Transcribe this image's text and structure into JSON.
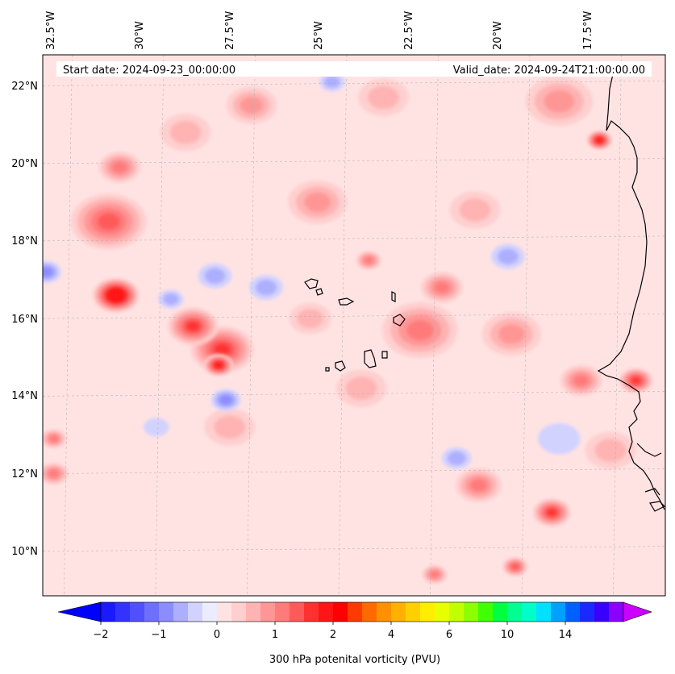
{
  "header": {
    "start_date": "Start date: 2024-09-23_00:00:00",
    "valid_date": "Valid_date: 2024-09-24T21:00:00.00"
  },
  "map": {
    "lon_labels": [
      "32.5°W",
      "30°W",
      "27.5°W",
      "25°W",
      "22.5°W",
      "20°W",
      "17.5°W"
    ],
    "lat_labels": [
      "22°N",
      "20°N",
      "18°N",
      "16°N",
      "14°N",
      "12°N",
      "10°N"
    ],
    "background_color": "#ffe3e3",
    "coastline_color": "#000000"
  },
  "colorbar": {
    "title": "300 hPa potenital vorticity (PVU)",
    "tick_labels": [
      "−2",
      "−1",
      "0",
      "1",
      "2",
      "4",
      "6",
      "10",
      "14"
    ],
    "colors": [
      "#1a1aff",
      "#3333ff",
      "#5050ff",
      "#6e6eff",
      "#8c8cff",
      "#aeaeff",
      "#d2d2ff",
      "#ececff",
      "#ffe3e3",
      "#ffcfcf",
      "#ffb3b3",
      "#ff9696",
      "#ff7a7a",
      "#ff5a5a",
      "#ff3030",
      "#ff1515",
      "#ff0000",
      "#ff3a00",
      "#ff6a00",
      "#ff9000",
      "#ffb000",
      "#ffcf00",
      "#ffee00",
      "#e8ff00",
      "#c2ff00",
      "#8cff00",
      "#40ff00",
      "#00ff40",
      "#00ff90",
      "#00ffc8",
      "#00e0ff",
      "#00a0ff",
      "#0060ff",
      "#1a2aff",
      "#3a00ff",
      "#8c00ff"
    ],
    "extend_min_color": "#0000ff",
    "extend_max_color": "#cc00ff"
  },
  "features": [
    {
      "lon": -31.3,
      "lat": 16.6,
      "r": 0.55,
      "level": 2.2
    },
    {
      "lon": -31.5,
      "lat": 18.5,
      "r": 0.9,
      "level": 1.3
    },
    {
      "lon": -31.2,
      "lat": 19.9,
      "r": 0.5,
      "level": 1.0
    },
    {
      "lon": -28.4,
      "lat": 15.2,
      "r": 0.75,
      "level": 1.6
    },
    {
      "lon": -29.2,
      "lat": 15.8,
      "r": 0.6,
      "level": 1.6
    },
    {
      "lon": -28.5,
      "lat": 14.8,
      "r": 0.35,
      "level": 1.8
    },
    {
      "lon": -18.1,
      "lat": 20.6,
      "r": 0.3,
      "level": 1.8
    },
    {
      "lon": -17.1,
      "lat": 14.4,
      "r": 0.4,
      "level": 1.6
    },
    {
      "lon": -19.4,
      "lat": 11.0,
      "r": 0.45,
      "level": 1.4
    },
    {
      "lon": -21.4,
      "lat": 11.7,
      "r": 0.55,
      "level": 0.9
    },
    {
      "lon": -23.0,
      "lat": 15.7,
      "r": 0.9,
      "level": 0.9
    },
    {
      "lon": -22.4,
      "lat": 16.8,
      "r": 0.5,
      "level": 1.0
    },
    {
      "lon": -24.4,
      "lat": 17.5,
      "r": 0.3,
      "level": 1.0
    },
    {
      "lon": -20.5,
      "lat": 15.6,
      "r": 0.7,
      "level": 0.8
    },
    {
      "lon": -18.6,
      "lat": 14.4,
      "r": 0.5,
      "level": 0.9
    },
    {
      "lon": -22.6,
      "lat": 9.4,
      "r": 0.3,
      "level": 1.1
    },
    {
      "lon": -20.4,
      "lat": 9.6,
      "r": 0.3,
      "level": 1.2
    },
    {
      "lon": -27.6,
      "lat": 21.5,
      "r": 0.6,
      "level": 0.7
    },
    {
      "lon": -25.8,
      "lat": 19.0,
      "r": 0.7,
      "level": 0.7
    },
    {
      "lon": -19.2,
      "lat": 21.6,
      "r": 0.8,
      "level": 0.7
    },
    {
      "lon": -33.0,
      "lat": 12.0,
      "r": 0.35,
      "level": 1.1
    },
    {
      "lon": -33.0,
      "lat": 12.9,
      "r": 0.3,
      "level": 1.0
    },
    {
      "lon": -28.2,
      "lat": 13.2,
      "r": 0.6,
      "level": 0.5
    },
    {
      "lon": -24.6,
      "lat": 14.2,
      "r": 0.6,
      "level": 0.5
    },
    {
      "lon": -26.0,
      "lat": 16.0,
      "r": 0.5,
      "level": 0.5
    },
    {
      "lon": -17.8,
      "lat": 12.6,
      "r": 0.6,
      "level": 0.6
    },
    {
      "lon": -21.5,
      "lat": 18.8,
      "r": 0.6,
      "level": 0.5
    },
    {
      "lon": -29.4,
      "lat": 20.8,
      "r": 0.6,
      "level": 0.6
    },
    {
      "lon": -24.0,
      "lat": 21.7,
      "r": 0.6,
      "level": 0.5
    },
    {
      "lon": -33.2,
      "lat": 17.2,
      "r": 0.35,
      "level": -0.8
    },
    {
      "lon": -29.8,
      "lat": 16.5,
      "r": 0.3,
      "level": -0.6
    },
    {
      "lon": -28.6,
      "lat": 17.1,
      "r": 0.4,
      "level": -0.5
    },
    {
      "lon": -27.2,
      "lat": 16.8,
      "r": 0.4,
      "level": -0.4
    },
    {
      "lon": -28.3,
      "lat": 13.9,
      "r": 0.35,
      "level": -0.7
    },
    {
      "lon": -20.6,
      "lat": 17.6,
      "r": 0.4,
      "level": -0.5
    },
    {
      "lon": -22.0,
      "lat": 12.4,
      "r": 0.35,
      "level": -0.4
    },
    {
      "lon": -19.2,
      "lat": 12.9,
      "r": 0.5,
      "level": -0.3
    },
    {
      "lon": -25.4,
      "lat": 22.1,
      "r": 0.3,
      "level": -0.4
    },
    {
      "lon": -30.2,
      "lat": 13.2,
      "r": 0.3,
      "level": -0.3
    }
  ]
}
